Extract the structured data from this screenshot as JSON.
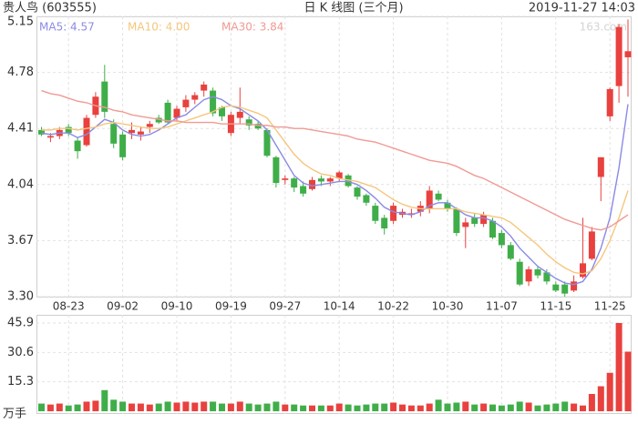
{
  "chart_data": [
    {
      "type": "candlestick",
      "stock": "贵人鸟 (603555)",
      "title": "日 K 线图 (三个月)",
      "timestamp": "2019-11-27 14:03",
      "watermark": "163.com",
      "categories": [
        null,
        null,
        null,
        "08-23",
        null,
        null,
        null,
        null,
        null,
        "09-02",
        null,
        null,
        null,
        null,
        null,
        "09-10",
        null,
        null,
        null,
        null,
        null,
        "09-19",
        null,
        null,
        null,
        null,
        null,
        "09-27",
        null,
        null,
        null,
        null,
        null,
        "10-14",
        null,
        null,
        null,
        null,
        null,
        "10-22",
        null,
        null,
        null,
        null,
        null,
        "10-30",
        null,
        null,
        null,
        null,
        null,
        "11-07",
        null,
        null,
        null,
        null,
        null,
        "11-15",
        null,
        null,
        null,
        null,
        null,
        "11-25",
        null,
        null
      ],
      "open": [
        4.4,
        4.35,
        4.36,
        4.42,
        4.33,
        4.3,
        4.5,
        4.72,
        4.44,
        4.37,
        4.38,
        4.37,
        4.42,
        4.48,
        4.58,
        4.48,
        4.55,
        4.6,
        4.66,
        4.66,
        4.55,
        4.38,
        4.48,
        4.47,
        4.44,
        4.4,
        4.22,
        4.07,
        4.08,
        4.03,
        4.01,
        4.08,
        4.06,
        4.08,
        4.1,
        4.02,
        3.97,
        3.9,
        3.82,
        3.8,
        3.84,
        3.84,
        3.86,
        3.88,
        3.98,
        3.92,
        3.88,
        3.76,
        3.82,
        3.78,
        3.8,
        3.72,
        3.64,
        3.53,
        3.4,
        3.48,
        3.46,
        3.38,
        3.38,
        3.34,
        3.43,
        3.55,
        4.09,
        4.49,
        4.69,
        4.88
      ],
      "high": [
        4.42,
        4.38,
        4.42,
        4.44,
        4.35,
        4.5,
        4.65,
        4.83,
        4.47,
        4.39,
        4.45,
        4.42,
        4.46,
        4.5,
        4.6,
        4.56,
        4.63,
        4.65,
        4.72,
        4.68,
        4.56,
        4.52,
        4.68,
        4.49,
        4.46,
        4.41,
        4.23,
        4.1,
        4.09,
        4.06,
        4.09,
        4.1,
        4.09,
        4.13,
        4.11,
        4.03,
        3.98,
        3.92,
        3.84,
        3.92,
        3.88,
        3.88,
        3.93,
        4.03,
        4.0,
        3.94,
        3.89,
        3.82,
        3.85,
        3.86,
        3.82,
        3.74,
        3.66,
        3.55,
        3.5,
        3.5,
        3.48,
        3.4,
        3.4,
        3.44,
        3.82,
        3.76,
        4.22,
        4.68,
        5.1,
        5.13
      ],
      "low": [
        4.36,
        4.32,
        4.34,
        4.36,
        4.21,
        4.29,
        4.48,
        4.48,
        4.28,
        4.2,
        4.34,
        4.33,
        4.38,
        4.44,
        4.44,
        4.46,
        4.52,
        4.57,
        4.62,
        4.49,
        4.46,
        4.36,
        4.44,
        4.4,
        4.4,
        4.22,
        4.02,
        4.04,
        3.99,
        3.96,
        4.0,
        4.03,
        4.03,
        4.06,
        4.02,
        3.94,
        3.9,
        3.78,
        3.71,
        3.78,
        3.82,
        3.82,
        3.83,
        3.85,
        3.93,
        3.86,
        3.7,
        3.62,
        3.76,
        3.76,
        3.68,
        3.62,
        3.54,
        3.37,
        3.37,
        3.42,
        3.38,
        3.33,
        3.3,
        3.33,
        3.42,
        3.54,
        3.93,
        4.46,
        4.58,
        4.62
      ],
      "close": [
        4.37,
        4.36,
        4.4,
        4.38,
        4.26,
        4.48,
        4.62,
        4.52,
        4.31,
        4.22,
        4.4,
        4.39,
        4.44,
        4.45,
        4.45,
        4.54,
        4.6,
        4.63,
        4.7,
        4.51,
        4.49,
        4.5,
        4.52,
        4.43,
        4.41,
        4.23,
        4.05,
        4.08,
        4.02,
        3.98,
        4.07,
        4.06,
        4.08,
        4.12,
        4.03,
        3.96,
        3.92,
        3.8,
        3.75,
        3.9,
        3.86,
        3.85,
        3.9,
        4.0,
        3.94,
        3.88,
        3.72,
        3.79,
        3.78,
        3.84,
        3.69,
        3.64,
        3.55,
        3.38,
        3.48,
        3.44,
        3.4,
        3.34,
        3.32,
        3.4,
        3.52,
        3.73,
        4.22,
        4.67,
        5.08,
        4.92
      ],
      "up_color": "#e8413e",
      "down_color": "#3fae49",
      "lines": [
        {
          "name": "MA5",
          "legend": "MA5: 4.57",
          "color": "#8a8ae6",
          "values": [
            4.38,
            4.37,
            4.38,
            4.38,
            4.35,
            4.37,
            4.42,
            4.47,
            4.45,
            4.4,
            4.37,
            4.36,
            4.37,
            4.4,
            4.44,
            4.48,
            4.5,
            4.55,
            4.6,
            4.62,
            4.6,
            4.56,
            4.54,
            4.5,
            4.46,
            4.4,
            4.3,
            4.2,
            4.1,
            4.05,
            4.03,
            4.04,
            4.05,
            4.06,
            4.06,
            4.04,
            4.0,
            3.95,
            3.89,
            3.86,
            3.85,
            3.84,
            3.86,
            3.9,
            3.92,
            3.92,
            3.88,
            3.84,
            3.82,
            3.82,
            3.8,
            3.76,
            3.7,
            3.62,
            3.56,
            3.5,
            3.46,
            3.42,
            3.39,
            3.38,
            3.4,
            3.48,
            3.62,
            3.82,
            4.15,
            4.57
          ]
        },
        {
          "name": "MA10",
          "legend": "MA10: 4.00",
          "color": "#f5c67c",
          "values": [
            4.4,
            4.4,
            4.41,
            4.41,
            4.4,
            4.41,
            4.42,
            4.44,
            4.45,
            4.44,
            4.43,
            4.42,
            4.41,
            4.41,
            4.42,
            4.44,
            4.46,
            4.48,
            4.5,
            4.52,
            4.55,
            4.56,
            4.55,
            4.53,
            4.51,
            4.48,
            4.4,
            4.32,
            4.24,
            4.18,
            4.14,
            4.11,
            4.1,
            4.08,
            4.07,
            4.06,
            4.04,
            4.02,
            3.98,
            3.94,
            3.91,
            3.89,
            3.88,
            3.88,
            3.88,
            3.88,
            3.88,
            3.86,
            3.85,
            3.84,
            3.83,
            3.82,
            3.79,
            3.74,
            3.69,
            3.64,
            3.58,
            3.53,
            3.49,
            3.46,
            3.45,
            3.47,
            3.55,
            3.67,
            3.82,
            4.0
          ]
        },
        {
          "name": "MA30",
          "legend": "MA30: 3.84",
          "color": "#f09a94",
          "values": [
            4.66,
            4.64,
            4.63,
            4.61,
            4.59,
            4.58,
            4.56,
            4.55,
            4.53,
            4.52,
            4.5,
            4.49,
            4.48,
            4.47,
            4.46,
            4.46,
            4.45,
            4.45,
            4.45,
            4.45,
            4.44,
            4.44,
            4.44,
            4.44,
            4.43,
            4.43,
            4.42,
            4.42,
            4.41,
            4.41,
            4.4,
            4.39,
            4.38,
            4.37,
            4.36,
            4.34,
            4.33,
            4.32,
            4.3,
            4.28,
            4.26,
            4.24,
            4.22,
            4.2,
            4.19,
            4.18,
            4.16,
            4.13,
            4.1,
            4.08,
            4.05,
            4.02,
            3.99,
            3.96,
            3.93,
            3.9,
            3.87,
            3.84,
            3.81,
            3.79,
            3.77,
            3.75,
            3.74,
            3.76,
            3.8,
            3.84
          ]
        }
      ],
      "ylim": [
        3.3,
        5.15
      ],
      "yticks": [
        {
          "value": 3.3,
          "label": "3.30"
        },
        3.67,
        4.04,
        4.41,
        4.78,
        5.15
      ],
      "grid": true
    },
    {
      "type": "bar",
      "unit_label": "万手",
      "values": [
        4,
        3.5,
        4,
        3,
        3.5,
        5,
        5.5,
        11,
        6,
        5,
        4,
        4,
        3.5,
        4,
        5,
        4.5,
        5,
        4.5,
        5,
        5,
        4,
        4,
        5,
        4,
        3.5,
        4,
        5,
        3.5,
        3.5,
        3,
        3,
        3,
        3,
        4,
        3.5,
        3,
        3.5,
        4,
        4,
        4.5,
        3.5,
        3,
        3,
        4,
        6,
        4,
        4.5,
        5,
        3.5,
        4,
        3.5,
        3,
        3.5,
        5,
        4.5,
        3,
        3.5,
        4,
        5,
        4,
        3,
        9,
        13,
        20,
        45.9,
        31
      ],
      "ylim": [
        0,
        45.9
      ],
      "yticks": [
        15.3,
        30.6,
        45.9
      ],
      "grid": true
    }
  ]
}
